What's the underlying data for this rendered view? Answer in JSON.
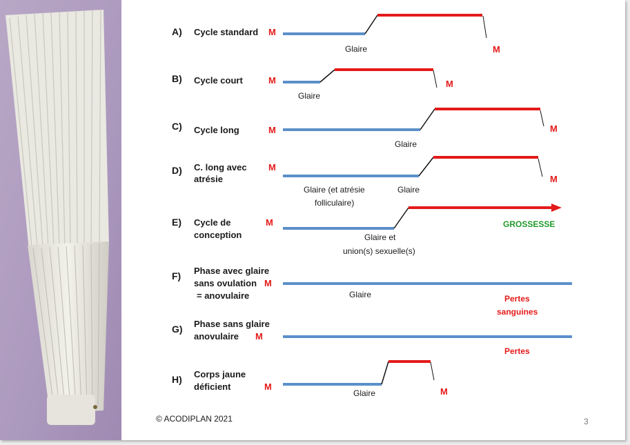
{
  "rows": [
    {
      "letter": "A)",
      "title": [
        "Cycle standard"
      ],
      "m_start": "M",
      "labels": [
        "Glaire"
      ],
      "m_end": "M"
    },
    {
      "letter": "B)",
      "title": [
        "Cycle court"
      ],
      "m_start": "M",
      "labels": [
        "Glaire"
      ],
      "m_end": "M"
    },
    {
      "letter": "C)",
      "title": [
        "Cycle long"
      ],
      "m_start": "M",
      "labels": [
        "Glaire"
      ],
      "m_end": "M"
    },
    {
      "letter": "D)",
      "title": [
        "C. long avec",
        "atrésie"
      ],
      "m_start": "M",
      "labels": [
        "Glaire (et atrésie",
        "folliculaire)",
        "Glaire"
      ],
      "m_end": "M"
    },
    {
      "letter": "E)",
      "title": [
        "Cycle de",
        "conception"
      ],
      "m_start": "M",
      "labels": [
        "Glaire et",
        "union(s) sexuelle(s)"
      ],
      "end_label": "GROSSESSE"
    },
    {
      "letter": "F)",
      "title": [
        "Phase avec glaire",
        "sans ovulation",
        "= anovulaire"
      ],
      "m_start": "M",
      "labels": [
        "Glaire"
      ],
      "end_label": [
        "Pertes",
        "sanguines"
      ]
    },
    {
      "letter": "G)",
      "title": [
        "Phase sans glaire",
        "anovulaire"
      ],
      "m_start": "M",
      "end_label": "Pertes"
    },
    {
      "letter": "H)",
      "title": [
        "Corps jaune",
        "déficient"
      ],
      "m_start": "M",
      "labels": [
        "Glaire"
      ],
      "m_end": "M"
    }
  ],
  "footer": {
    "copyright": "© ACODIPLAN 2021",
    "page_number": "3"
  },
  "colors": {
    "mucus_line": "#5b8fc9",
    "luteal_line": "#e41a1a",
    "pregnancy_text": "#1f9a2a"
  },
  "icons": {
    "photo": "folding-fan-photo"
  }
}
